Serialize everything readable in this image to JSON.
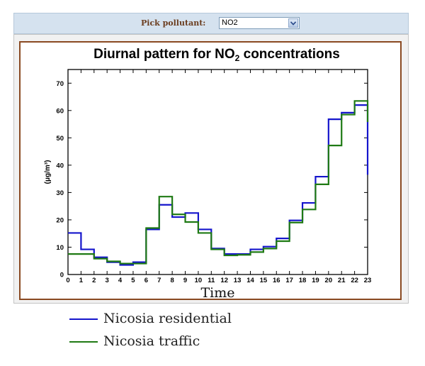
{
  "toolbar": {
    "pick_label": "Pick pollutant:",
    "selected": "NO2",
    "dropdown_icon": "chevron-down-icon"
  },
  "colors": {
    "residential": "#1515cc",
    "traffic": "#1f7a14",
    "frame": "#8a4a22"
  },
  "chart_data": {
    "type": "line",
    "step": true,
    "title_main": "Diurnal pattern for NO",
    "title_sub": "2",
    "title_end": " concentrations",
    "xlabel": "Time",
    "ylabel": "(μg/m³)",
    "xlim": [
      0,
      23
    ],
    "ylim": [
      0,
      75
    ],
    "xticks": [
      "0",
      "1",
      "2",
      "3",
      "4",
      "5",
      "6",
      "7",
      "8",
      "9",
      "10",
      "11",
      "12",
      "13",
      "14",
      "15",
      "16",
      "17",
      "18",
      "19",
      "20",
      "21",
      "22",
      "23"
    ],
    "yticks": [
      "0",
      "10",
      "20",
      "30",
      "40",
      "50",
      "60",
      "70"
    ],
    "x": [
      0,
      1,
      2,
      3,
      4,
      5,
      6,
      7,
      8,
      9,
      10,
      11,
      12,
      13,
      14,
      15,
      16,
      17,
      18,
      19,
      20,
      21,
      22,
      23
    ],
    "series": [
      {
        "name": "Nicosia residential",
        "values": [
          15.2,
          9.2,
          6.3,
          4.5,
          3.5,
          4.5,
          16.5,
          25.5,
          21.0,
          22.5,
          16.5,
          9.5,
          7.5,
          7.5,
          9.2,
          10.2,
          13.2,
          19.8,
          26.2,
          35.8,
          56.8,
          59.2,
          62.0,
          36.5
        ]
      },
      {
        "name": "Nicosia traffic",
        "values": [
          7.5,
          7.5,
          5.8,
          4.8,
          4.0,
          4.0,
          17.0,
          28.5,
          22.0,
          19.2,
          15.2,
          9.2,
          7.0,
          7.2,
          8.2,
          9.5,
          12.2,
          19.0,
          23.8,
          33.0,
          47.2,
          58.5,
          63.5,
          55.8
        ]
      }
    ],
    "legend": [
      "Nicosia residential",
      "Nicosia traffic"
    ],
    "legend_position": "bottom"
  }
}
